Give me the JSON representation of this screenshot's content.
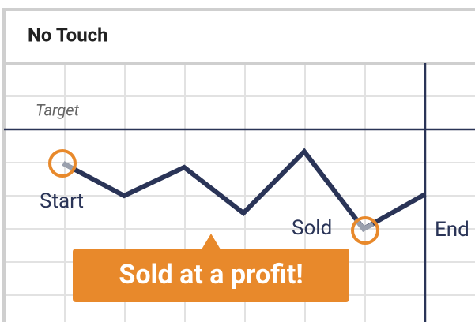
{
  "header": {
    "title": "No Touch"
  },
  "diagram": {
    "target_label": "Target",
    "start_label": "Start",
    "sold_label": "Sold",
    "end_label": "End",
    "callout": "Sold at a profit!"
  }
}
